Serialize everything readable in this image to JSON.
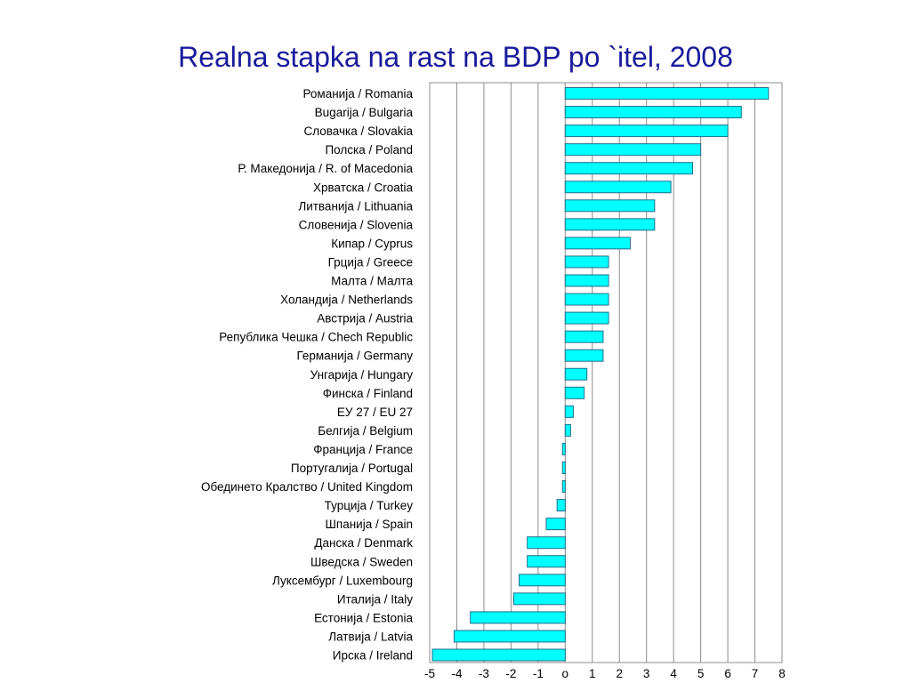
{
  "slide": {
    "title": "Realna stapka na rast na BDP po `itel, 2008"
  },
  "colors": {
    "bar_fill": "#00ffff",
    "bar_stroke": "#1f6f8b",
    "grid": "#8c8c8c",
    "frame": "#8c8c8c",
    "title": "#1a1a9c"
  },
  "chart_data": {
    "type": "bar",
    "orientation": "horizontal",
    "title": "Realna stapka na rast na BDP po `itel, 2008",
    "xlabel": "",
    "ylabel": "",
    "xlim": [
      -5,
      8
    ],
    "xticks": [
      -5,
      -4,
      -3,
      -2,
      -1,
      0,
      1,
      2,
      3,
      4,
      5,
      6,
      7,
      8
    ],
    "xtick_labels": [
      "-5",
      "-4",
      "-3",
      "-2",
      "-1",
      "o",
      "1",
      "2",
      "3",
      "4",
      "5",
      "6",
      "7",
      "8"
    ],
    "grid": "vertical gridlines at every integer",
    "legend": "none",
    "categories": [
      "Романија / Romania",
      "Bugarija / Bulgaria",
      "Словачка / Slovakia",
      "Полска / Poland",
      "Р. Македонија / R. of Macedonia",
      "Хрватска / Croatia",
      "Литванија / Lithuania",
      "Словенија / Slovenia",
      "Кипар / Cyprus",
      "Грција / Greece",
      "Малта / Малта",
      "Холандија / Netherlands",
      "Австрија / Austria",
      "Република Чешка / Chech Republic",
      "Германија / Germany",
      "Унгарија / Hungary",
      "Финска / Finland",
      "ЕУ 27 / EU 27",
      "Белгија / Belgium",
      "Франција / France",
      "Португалија / Portugal",
      "Обединето Кралство / United Kingdom",
      "Турција / Turkey",
      "Шпанија / Spain",
      "Данска / Denmark",
      "Шведска / Sweden",
      "Луксембург / Luxembourg",
      "Италија / Italy",
      "Естонија / Estonia",
      "Латвија / Latvia",
      "Ирска / Ireland"
    ],
    "values": [
      7.5,
      6.5,
      6.0,
      5.0,
      4.7,
      3.9,
      3.3,
      3.3,
      2.4,
      1.6,
      1.6,
      1.6,
      1.6,
      1.4,
      1.4,
      0.8,
      0.7,
      0.3,
      0.2,
      -0.1,
      -0.1,
      -0.1,
      -0.3,
      -0.7,
      -1.4,
      -1.4,
      -1.7,
      -1.9,
      -3.5,
      -4.1,
      -4.9
    ]
  }
}
